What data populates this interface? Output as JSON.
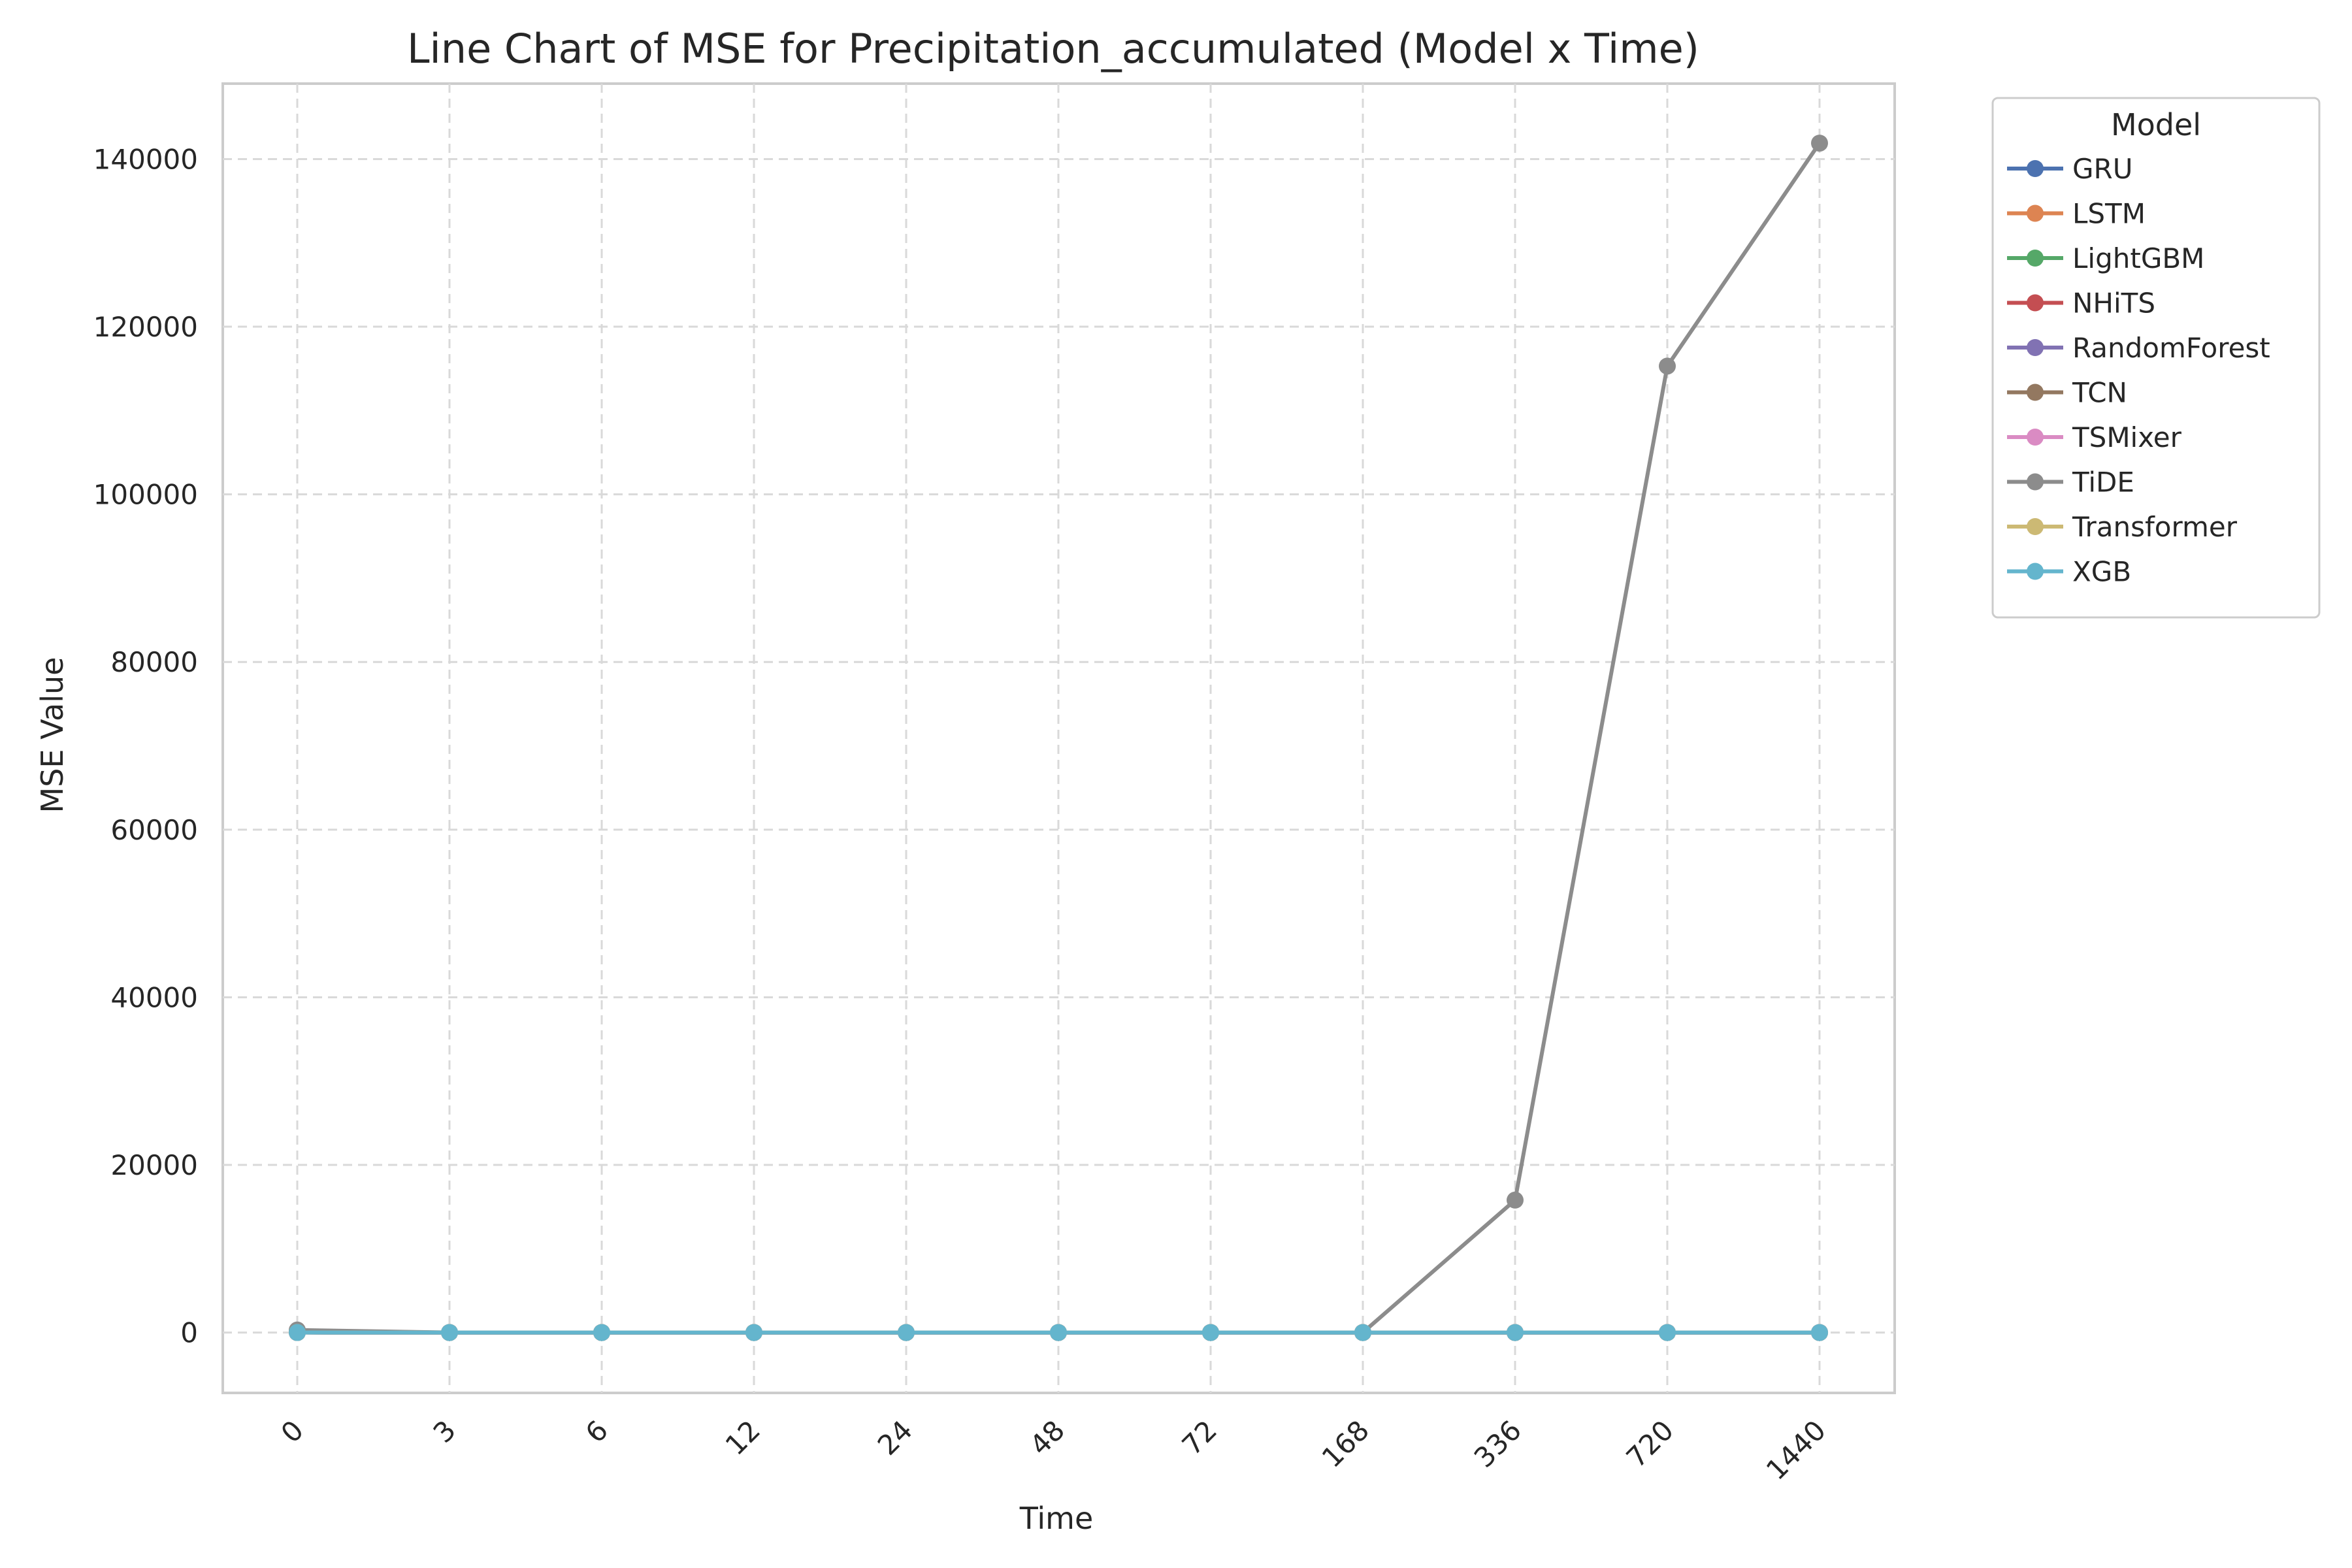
{
  "chart_data": {
    "type": "line",
    "title": "Line Chart of MSE for Precipitation_accumulated (Model x Time)",
    "xlabel": "Time",
    "ylabel": "MSE Value",
    "categories": [
      "0",
      "3",
      "6",
      "12",
      "24",
      "48",
      "72",
      "168",
      "336",
      "720",
      "1440"
    ],
    "yticks": [
      "0",
      "20000",
      "40000",
      "60000",
      "80000",
      "100000",
      "120000",
      "140000"
    ],
    "ylim": [
      -7200,
      149000
    ],
    "grid": true,
    "legend": {
      "title": "Model",
      "placement": "outside-top-right"
    },
    "series": [
      {
        "name": "GRU",
        "color": "#4c72b0",
        "values": [
          5,
          1,
          1,
          1,
          1,
          1,
          1,
          1,
          1,
          1,
          1
        ]
      },
      {
        "name": "LSTM",
        "color": "#dd8452",
        "values": [
          5,
          1,
          1,
          1,
          1,
          1,
          1,
          1,
          1,
          1,
          1
        ]
      },
      {
        "name": "LightGBM",
        "color": "#55a868",
        "values": [
          5,
          1,
          1,
          1,
          1,
          1,
          1,
          1,
          1,
          1,
          1
        ]
      },
      {
        "name": "NHiTS",
        "color": "#c44e52",
        "values": [
          5,
          1,
          1,
          1,
          1,
          1,
          1,
          1,
          1,
          1,
          1
        ]
      },
      {
        "name": "RandomForest",
        "color": "#8172b3",
        "values": [
          5,
          1,
          1,
          1,
          1,
          1,
          1,
          1,
          1,
          1,
          1
        ]
      },
      {
        "name": "TCN",
        "color": "#937860",
        "values": [
          5,
          1,
          1,
          1,
          1,
          1,
          1,
          1,
          1,
          1,
          1
        ]
      },
      {
        "name": "TSMixer",
        "color": "#da8bc3",
        "values": [
          5,
          1,
          1,
          1,
          1,
          1,
          1,
          1,
          1,
          1,
          1
        ]
      },
      {
        "name": "TiDE",
        "color": "#8c8c8c",
        "values": [
          300,
          5,
          5,
          5,
          5,
          5,
          5,
          5,
          15800,
          115300,
          141900
        ]
      },
      {
        "name": "Transformer",
        "color": "#ccb974",
        "values": [
          5,
          1,
          1,
          1,
          1,
          1,
          1,
          1,
          1,
          1,
          1
        ]
      },
      {
        "name": "XGB",
        "color": "#64b5cd",
        "values": [
          5,
          1,
          1,
          1,
          1,
          1,
          1,
          1,
          1,
          1,
          1
        ]
      }
    ]
  }
}
